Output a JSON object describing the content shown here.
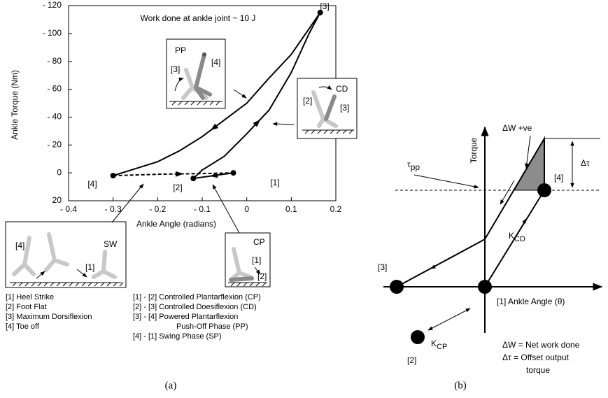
{
  "chart_data": {
    "type": "line",
    "title": "Work done at ankle joint ~ 10 J",
    "x_label": "Ankle Angle (radians)",
    "y_label": "Ankle Torque (Nm)",
    "xlim": [
      -0.4,
      0.2
    ],
    "ylim": [
      20,
      -120
    ],
    "xticks": [
      {
        "value": -0.4,
        "label": "- 0.4"
      },
      {
        "value": -0.3,
        "label": "- 0.3"
      },
      {
        "value": -0.2,
        "label": "- 0.2"
      },
      {
        "value": -0.1,
        "label": "- 0.1"
      },
      0,
      0.1,
      0.2
    ],
    "yticks": [
      20,
      0,
      {
        "value": -20,
        "label": "- 20"
      },
      {
        "value": -40,
        "label": "- 40"
      },
      {
        "value": -60,
        "label": "- 60"
      },
      {
        "value": -80,
        "label": "- 80"
      },
      {
        "value": -100,
        "label": "- 100"
      },
      {
        "value": -120,
        "label": "- 120"
      }
    ],
    "series": [
      {
        "color": "#000000",
        "dashed": false,
        "x": [
          -0.03,
          -0.12
        ],
        "values": [
          0,
          4
        ]
      },
      {
        "color": "#000000",
        "dashed": false,
        "x": [
          -0.12,
          -0.1,
          -0.05,
          0,
          0.05,
          0.1,
          0.14,
          0.165
        ],
        "values": [
          4,
          -2,
          -12,
          -28,
          -45,
          -72,
          -100,
          -115
        ]
      },
      {
        "color": "#000000",
        "dashed": false,
        "x": [
          0.165,
          0.1,
          0.05,
          0,
          -0.05,
          -0.1,
          -0.15,
          -0.2,
          -0.25,
          -0.3
        ],
        "values": [
          -115,
          -85,
          -68,
          -50,
          -38,
          -26,
          -16,
          -8,
          -3,
          2
        ]
      },
      {
        "color": "#000000",
        "dashed": true,
        "x": [
          -0.3,
          -0.2,
          -0.1,
          -0.03
        ],
        "values": [
          2,
          1,
          0.5,
          0
        ]
      }
    ],
    "point_labels": [
      "[1]",
      "[2]",
      "[3]",
      "[4]"
    ],
    "insets": [
      {
        "label": "PP",
        "points": [
          "[3]",
          "[4]"
        ]
      },
      {
        "label": "CD",
        "points": [
          "[2]",
          "[3]"
        ]
      },
      {
        "label": "SW",
        "points": [
          "[4]",
          "[1]"
        ]
      },
      {
        "label": "CP",
        "points": [
          "[1]",
          "[2]"
        ]
      }
    ],
    "key_left": [
      "[1]  Heel Strike",
      "[2]  Foot Flat",
      "[3]  Maximum Dorsiflexion",
      "[4]  Toe off"
    ],
    "key_right": [
      "[1] - [2]  Controlled Plantarflexion  (CP)",
      "[2] - [3]  Controlled Doesiflexion (CD)",
      "[3] - [4]  Powered Plantarflexion",
      "Push-Off Phase (PP)",
      "[4] - [1]  Swing Phase (SP)"
    ]
  },
  "panel_b": {
    "y_axis": "Torque",
    "x_axis": "[1]  Ankle Angle (θ)",
    "work": "ΔW +ve",
    "offset": "Δτ",
    "tau": {
      "base": "τ",
      "sub": "pp"
    },
    "k_cd": {
      "base": "K",
      "sub": "CD"
    },
    "k_cp": {
      "base": "K",
      "sub": "CP"
    },
    "point_4": "[4]",
    "point_3": "[3]",
    "point_2": "[2]",
    "notes": [
      "ΔW =  Net work done",
      "Δτ  = Offset output",
      "torque"
    ]
  },
  "captions": [
    "(a)",
    "(b)"
  ]
}
